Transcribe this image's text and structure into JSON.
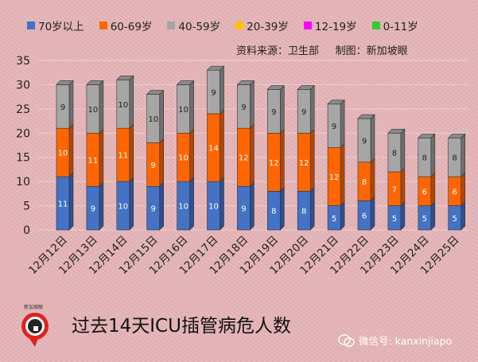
{
  "chart_data": {
    "type": "bar",
    "stacked": true,
    "style": "3d-column",
    "categories": [
      "12月12日",
      "12月13日",
      "12月14日",
      "12月15日",
      "12月16日",
      "12月17日",
      "12月18日",
      "12月19日",
      "12月20日",
      "12月21日",
      "12月22日",
      "12月23日",
      "12月24日",
      "12月25日"
    ],
    "series": [
      {
        "name": "70岁以上",
        "color": "#4472c4",
        "values": [
          11,
          9,
          10,
          9,
          10,
          10,
          9,
          8,
          8,
          5,
          6,
          5,
          5,
          5
        ]
      },
      {
        "name": "60-69岁",
        "color": "#ff6600",
        "values": [
          10,
          11,
          11,
          9,
          10,
          14,
          12,
          12,
          12,
          12,
          8,
          7,
          6,
          6
        ]
      },
      {
        "name": "40-59岁",
        "color": "#a6a6a6",
        "values": [
          9,
          10,
          10,
          10,
          10,
          9,
          9,
          9,
          9,
          9,
          9,
          8,
          8,
          8
        ]
      },
      {
        "name": "20-39岁",
        "color": "#ffc000",
        "values": [
          0,
          0,
          0,
          0,
          0,
          0,
          0,
          0,
          0,
          0,
          0,
          0,
          0,
          0
        ]
      },
      {
        "name": "12-19岁",
        "color": "#ff00ff",
        "values": [
          0,
          0,
          0,
          0,
          0,
          0,
          0,
          0,
          0,
          0,
          0,
          0,
          0,
          0
        ]
      },
      {
        "name": "0-11岁",
        "color": "#33cc33",
        "values": [
          0,
          0,
          0,
          0,
          0,
          0,
          0,
          0,
          0,
          0,
          0,
          0,
          0,
          0
        ]
      }
    ],
    "yticks": [
      0,
      5,
      10,
      15,
      20,
      25,
      30,
      35
    ],
    "ylim": [
      0,
      35
    ],
    "grid": true,
    "legend": "top",
    "title": "过去14天ICU插管病危人数",
    "source": "资料来源：卫生部     制图：新加坡眼"
  },
  "watermark": "微信号: kanxinjiapo",
  "logo_text": "新加坡眼"
}
